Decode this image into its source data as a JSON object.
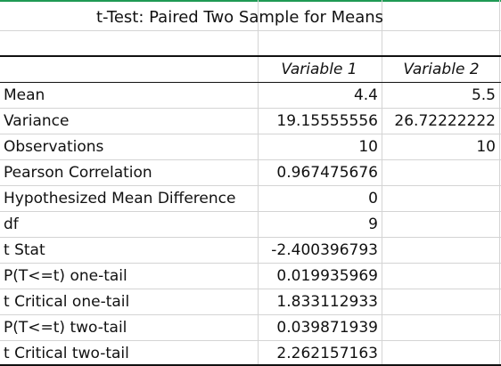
{
  "title": "t-Test: Paired Two Sample for Means",
  "headers": {
    "blank": "",
    "variable1": "Variable 1",
    "variable2": "Variable 2"
  },
  "rows": [
    {
      "label": "Mean",
      "v1": "4.4",
      "v2": "5.5"
    },
    {
      "label": "Variance",
      "v1": "19.15555556",
      "v2": "26.72222222"
    },
    {
      "label": "Observations",
      "v1": "10",
      "v2": "10"
    },
    {
      "label": "Pearson Correlation",
      "v1": "0.967475676",
      "v2": ""
    },
    {
      "label": "Hypothesized Mean Difference",
      "v1": "0",
      "v2": ""
    },
    {
      "label": "df",
      "v1": "9",
      "v2": ""
    },
    {
      "label": "t Stat",
      "v1": "-2.400396793",
      "v2": ""
    },
    {
      "label": "P(T<=t) one-tail",
      "v1": "0.019935969",
      "v2": ""
    },
    {
      "label": "t Critical one-tail",
      "v1": "1.833112933",
      "v2": ""
    },
    {
      "label": "P(T<=t) two-tail",
      "v1": "0.039871939",
      "v2": ""
    },
    {
      "label": "t Critical two-tail",
      "v1": "2.262157163",
      "v2": ""
    }
  ],
  "colors": {
    "gridline": "#d4d4d4",
    "selection_top": "#1f9a54",
    "rule": "#111111",
    "text": "#111111"
  }
}
